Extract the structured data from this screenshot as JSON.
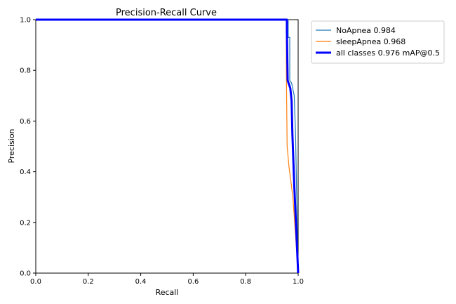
{
  "chart_data": {
    "type": "line",
    "title": "Precision-Recall Curve",
    "xlabel": "Recall",
    "ylabel": "Precision",
    "xlim": [
      0.0,
      1.0
    ],
    "ylim": [
      0.0,
      1.0
    ],
    "xticks": [
      "0.0",
      "0.2",
      "0.4",
      "0.6",
      "0.8",
      "1.0"
    ],
    "yticks": [
      "0.0",
      "0.2",
      "0.4",
      "0.6",
      "0.8",
      "1.0"
    ],
    "grid": false,
    "legend_position": "outside-top-right",
    "series": [
      {
        "name": "NoApnea 0.984",
        "color": "#1f77b4",
        "points": [
          [
            0.0,
            1.0
          ],
          [
            0.962,
            1.0
          ],
          [
            0.962,
            0.93
          ],
          [
            0.968,
            0.93
          ],
          [
            0.968,
            0.76
          ],
          [
            0.975,
            0.75
          ],
          [
            0.985,
            0.7
          ],
          [
            0.99,
            0.55
          ],
          [
            1.0,
            0.0
          ]
        ]
      },
      {
        "name": "sleepApnea 0.968",
        "color": "#ff7f0e",
        "points": [
          [
            0.0,
            1.0
          ],
          [
            0.955,
            1.0
          ],
          [
            0.955,
            0.8
          ],
          [
            0.958,
            0.5
          ],
          [
            0.965,
            0.42
          ],
          [
            0.98,
            0.3
          ],
          [
            1.0,
            0.0
          ]
        ]
      },
      {
        "name": "all classes 0.976 mAP@0.5",
        "color": "#0000ff",
        "points": [
          [
            0.0,
            1.0
          ],
          [
            0.957,
            1.0
          ],
          [
            0.957,
            0.96
          ],
          [
            0.96,
            0.76
          ],
          [
            0.97,
            0.73
          ],
          [
            0.975,
            0.68
          ],
          [
            0.978,
            0.55
          ],
          [
            0.985,
            0.35
          ],
          [
            1.0,
            0.0
          ]
        ]
      }
    ]
  }
}
